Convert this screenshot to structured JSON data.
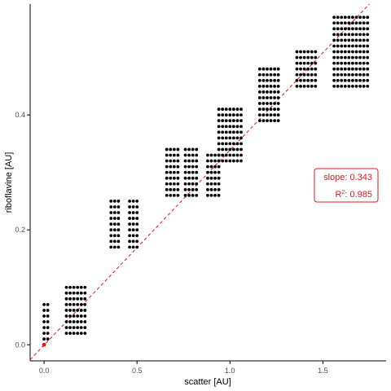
{
  "chart_data": {
    "type": "scatter",
    "xlabel": "scatter [AU]",
    "ylabel": "riboflavine [AU]",
    "xlim": [
      -0.075,
      1.84
    ],
    "ylim": [
      -0.028,
      0.593
    ],
    "x_ticks": [
      0.0,
      0.5,
      1.0,
      1.5
    ],
    "x_tick_labels": [
      "0.0",
      "0.5",
      "1.0",
      "1.5"
    ],
    "y_ticks": [
      0.0,
      0.2,
      0.4
    ],
    "y_tick_labels": [
      "0.0",
      "0.2",
      "0.4"
    ],
    "grid": false,
    "colors": {
      "points": "#000000",
      "fit_line": "#e31a1c",
      "annotation": "#e31a1c",
      "axis": "#000000",
      "tick_label": "#4d4d4d"
    },
    "fit_line": {
      "style": "dashed",
      "from": [
        -0.075,
        -0.026
      ],
      "to": [
        1.75,
        0.593
      ]
    },
    "origin_marker": {
      "x": 0.0,
      "y": 0.0,
      "color": "#e31a1c"
    },
    "annotation": {
      "slope_text": "slope: 0.343",
      "r2_prefix": "R",
      "r2_sup": "2",
      "r2_value": ": 0.985"
    },
    "clusters": [
      {
        "columns": [
          0.0,
          0.02
        ],
        "y_range": [
          0.01,
          0.07
        ]
      },
      {
        "columns": [
          0.12,
          0.14,
          0.16,
          0.18,
          0.2,
          0.22
        ],
        "y_range": [
          0.02,
          0.1
        ]
      },
      {
        "columns": [
          0.36,
          0.38,
          0.4
        ],
        "y_range": [
          0.17,
          0.25
        ]
      },
      {
        "columns": [
          0.46,
          0.48,
          0.5
        ],
        "y_range": [
          0.17,
          0.25
        ]
      },
      {
        "columns": [
          0.66,
          0.68,
          0.7,
          0.72
        ],
        "y_range": [
          0.26,
          0.34
        ]
      },
      {
        "columns": [
          0.76,
          0.78,
          0.8,
          0.82
        ],
        "y_range": [
          0.26,
          0.34
        ]
      },
      {
        "columns": [
          0.88,
          0.9,
          0.92,
          0.94
        ],
        "y_range": [
          0.26,
          0.33
        ]
      },
      {
        "columns": [
          0.94,
          0.96,
          0.98,
          1.0,
          1.02,
          1.04,
          1.06
        ],
        "y_range": [
          0.32,
          0.41
        ]
      },
      {
        "columns": [
          1.16,
          1.18,
          1.2,
          1.22,
          1.24,
          1.26
        ],
        "y_range": [
          0.39,
          0.48
        ]
      },
      {
        "columns": [
          1.36,
          1.38,
          1.4,
          1.42,
          1.44,
          1.46
        ],
        "y_range": [
          0.45,
          0.51
        ]
      },
      {
        "columns": [
          1.56,
          1.58,
          1.6,
          1.62,
          1.64,
          1.66,
          1.68,
          1.7,
          1.72,
          1.74
        ],
        "y_range": [
          0.45,
          0.57
        ]
      }
    ],
    "y_step": 0.01
  }
}
